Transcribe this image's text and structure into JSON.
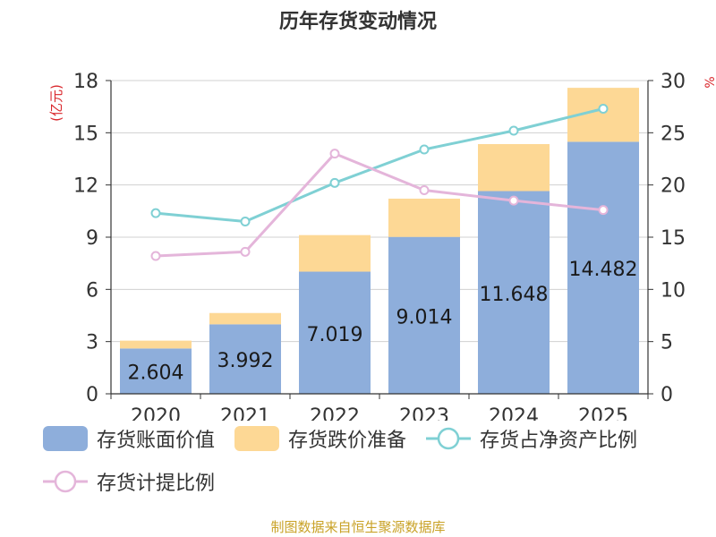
{
  "title": "历年存货变动情况",
  "source": "制图数据来自恒生聚源数据库",
  "colors": {
    "book_value": "#8eaedb",
    "impairment": "#fdd895",
    "net_asset_ratio": "#7fd0d4",
    "provision_ratio": "#e4b5da",
    "axis_label": "#d9262b",
    "grid": "#d0d0d0",
    "axis_line": "#333333",
    "source": "#c9a227"
  },
  "legend": {
    "book_value": "存货账面价值",
    "impairment": "存货跌价准备",
    "net_asset_ratio": "存货占净资产比例",
    "provision_ratio": "存货计提比例"
  },
  "chart_data": {
    "type": "bar",
    "title": "历年存货变动情况",
    "categories": [
      "2020",
      "2021",
      "2022",
      "2023",
      "2024",
      "2025"
    ],
    "y_left": {
      "label": "(亿元)",
      "ticks": [
        0,
        3,
        6,
        9,
        12,
        15,
        18
      ],
      "ylim": [
        0,
        18
      ]
    },
    "y_right": {
      "label": "%",
      "ticks": [
        0,
        5,
        10,
        15,
        20,
        25,
        30
      ],
      "ylim": [
        0,
        30
      ]
    },
    "series": [
      {
        "key": "book_value",
        "name": "存货账面价值",
        "type": "bar",
        "stack": "inventory",
        "axis": "left",
        "values": [
          2.604,
          3.992,
          7.019,
          9.014,
          11.648,
          14.482
        ],
        "labels": [
          "2.604",
          "3.992",
          "7.019",
          "9.014",
          "11.648",
          "14.482"
        ]
      },
      {
        "key": "impairment",
        "name": "存货跌价准备",
        "type": "bar",
        "stack": "inventory",
        "axis": "left",
        "values": [
          0.45,
          0.65,
          2.1,
          2.2,
          2.7,
          3.1
        ]
      },
      {
        "key": "net_asset_ratio",
        "name": "存货占净资产比例",
        "type": "line",
        "axis": "right",
        "values": [
          17.3,
          16.5,
          20.2,
          23.4,
          25.2,
          27.3
        ]
      },
      {
        "key": "provision_ratio",
        "name": "存货计提比例",
        "type": "line",
        "axis": "right",
        "values": [
          13.2,
          13.6,
          23.0,
          19.5,
          18.5,
          17.6
        ]
      }
    ],
    "grid": true,
    "legend_position": "bottom"
  }
}
